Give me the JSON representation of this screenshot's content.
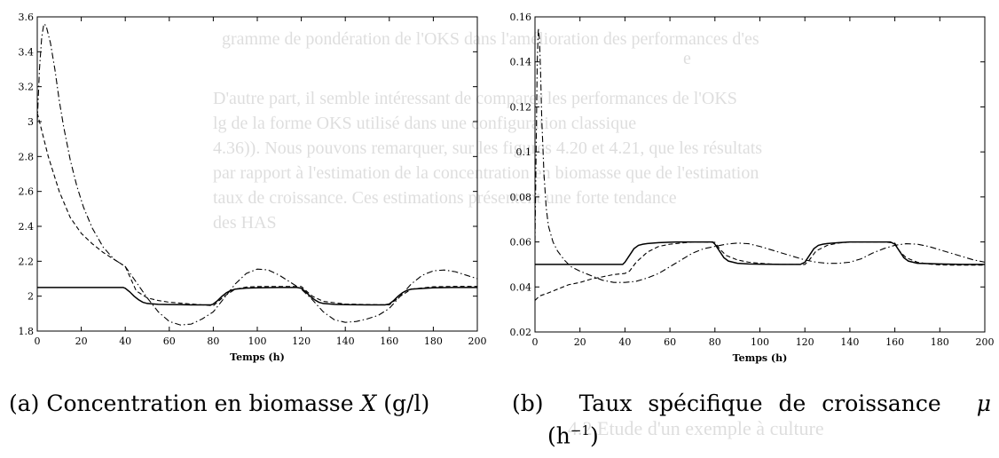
{
  "background": {
    "lines": [
      "gramme de pondération de l'OKS dans l'amélioration des performances d'es",
      "e",
      "D'autre part, il semble intéressant de comparer les performances de l'OKS",
      "lg de la forme OKS utilisé dans une configuration classique",
      "4.36)). Nous pouvons remarquer, sur les figures 4.20 et 4.21, que les résultats",
      "par rapport à l'estimation de la concentration en biomasse que de l'estimation",
      "taux de croissance. Ces estimations présentent une forte tendance",
      "des HAS",
      "4.2 Etude d'un exemple à culture"
    ]
  },
  "chart_data": [
    {
      "type": "line",
      "title": "",
      "xlabel": "Temps (h)",
      "ylabel": "",
      "xlim": [
        0,
        200
      ],
      "ylim": [
        1.8,
        3.6
      ],
      "xticks": [
        0,
        20,
        40,
        60,
        80,
        100,
        120,
        140,
        160,
        180,
        200
      ],
      "yticks": [
        1.8,
        2,
        2.2,
        2.4,
        2.6,
        2.8,
        3,
        3.2,
        3.4,
        3.6
      ],
      "xtick_labels": [
        "0",
        "20",
        "40",
        "60",
        "80",
        "100",
        "120",
        "140",
        "160",
        "180",
        "200"
      ],
      "ytick_labels": [
        "1.8",
        "2",
        "2.2",
        "2.4",
        "2.6",
        "2.8",
        "3",
        "3.2",
        "3.4",
        "3.6"
      ],
      "caption": {
        "label": "(a)",
        "text": "Concentration en biomasse",
        "symbol": "X",
        "unit": "(g/l)"
      },
      "series": [
        {
          "style": "solid",
          "x": [
            0,
            39,
            40,
            42,
            44,
            46,
            48,
            50,
            55,
            60,
            65,
            70,
            75,
            79,
            80,
            82,
            84,
            86,
            88,
            90,
            95,
            100,
            110,
            118,
            120,
            122,
            124,
            126,
            128,
            130,
            135,
            140,
            150,
            158,
            160,
            162,
            164,
            166,
            168,
            170,
            180,
            190,
            200
          ],
          "y": [
            2.05,
            2.05,
            2.045,
            2.025,
            2.0,
            1.98,
            1.965,
            1.958,
            1.953,
            1.952,
            1.951,
            1.95,
            1.95,
            1.95,
            1.955,
            1.975,
            2.0,
            2.02,
            2.033,
            2.04,
            2.046,
            2.048,
            2.05,
            2.05,
            2.045,
            2.025,
            2.0,
            1.98,
            1.965,
            1.958,
            1.953,
            1.951,
            1.95,
            1.95,
            1.955,
            1.975,
            2.0,
            2.02,
            2.033,
            2.04,
            2.048,
            2.05,
            2.05
          ]
        },
        {
          "style": "dashed",
          "x": [
            0,
            2,
            5,
            10,
            15,
            20,
            25,
            30,
            35,
            40,
            45,
            50,
            55,
            60,
            65,
            70,
            75,
            80,
            85,
            90,
            95,
            100,
            110,
            120,
            125,
            130,
            140,
            150,
            160,
            165,
            170,
            180,
            190,
            200
          ],
          "y": [
            3.05,
            2.95,
            2.8,
            2.6,
            2.45,
            2.36,
            2.3,
            2.25,
            2.21,
            2.17,
            2.03,
            1.99,
            1.975,
            1.965,
            1.96,
            1.955,
            1.95,
            1.945,
            2.0,
            2.04,
            2.052,
            2.055,
            2.055,
            2.055,
            2.0,
            1.97,
            1.955,
            1.952,
            1.95,
            2.0,
            2.04,
            2.054,
            2.056,
            2.056
          ]
        },
        {
          "style": "dashdot",
          "x": [
            0,
            1,
            2,
            3,
            4,
            6,
            8,
            10,
            12,
            15,
            18,
            21,
            25,
            30,
            35,
            40,
            45,
            50,
            55,
            60,
            65,
            70,
            75,
            80,
            85,
            90,
            95,
            100,
            105,
            110,
            115,
            120,
            125,
            130,
            135,
            140,
            145,
            150,
            155,
            160,
            165,
            170,
            175,
            180,
            185,
            190,
            195,
            200
          ],
          "y": [
            3.0,
            3.3,
            3.48,
            3.56,
            3.55,
            3.45,
            3.3,
            3.12,
            2.97,
            2.78,
            2.63,
            2.51,
            2.39,
            2.28,
            2.21,
            2.17,
            2.08,
            1.99,
            1.91,
            1.855,
            1.835,
            1.84,
            1.87,
            1.91,
            1.99,
            2.07,
            2.13,
            2.155,
            2.15,
            2.12,
            2.08,
            2.04,
            1.98,
            1.91,
            1.865,
            1.85,
            1.855,
            1.87,
            1.89,
            1.93,
            2.0,
            2.07,
            2.12,
            2.145,
            2.15,
            2.14,
            2.12,
            2.1
          ]
        }
      ]
    },
    {
      "type": "line",
      "title": "",
      "xlabel": "Temps (h)",
      "ylabel": "",
      "xlim": [
        0,
        200
      ],
      "ylim": [
        0.02,
        0.16
      ],
      "xticks": [
        0,
        20,
        40,
        60,
        80,
        100,
        120,
        140,
        160,
        180,
        200
      ],
      "yticks": [
        0.02,
        0.04,
        0.06,
        0.08,
        0.1,
        0.12,
        0.14,
        0.16
      ],
      "xtick_labels": [
        "0",
        "20",
        "40",
        "60",
        "80",
        "100",
        "120",
        "140",
        "160",
        "180",
        "200"
      ],
      "ytick_labels": [
        "0.02",
        "0.04",
        "0.06",
        "0.08",
        "0.1",
        "0.12",
        "0.14",
        "0.16"
      ],
      "caption": {
        "label": "(b)",
        "text": "Taux spécifique de croissance",
        "symbol": "μ",
        "unit_line2": "(h",
        "unit_sup": "−1",
        "unit_close": ")"
      },
      "series": [
        {
          "style": "solid",
          "x": [
            0,
            39,
            40,
            42,
            44,
            46,
            48,
            50,
            55,
            60,
            65,
            70,
            75,
            79,
            80,
            82,
            84,
            86,
            88,
            90,
            95,
            100,
            110,
            118,
            120,
            122,
            124,
            126,
            128,
            130,
            135,
            140,
            150,
            158,
            160,
            162,
            164,
            166,
            168,
            170,
            180,
            190,
            200
          ],
          "y": [
            0.05,
            0.05,
            0.051,
            0.054,
            0.057,
            0.0585,
            0.059,
            0.0593,
            0.0597,
            0.0599,
            0.06,
            0.06,
            0.06,
            0.06,
            0.059,
            0.056,
            0.053,
            0.0515,
            0.051,
            0.0505,
            0.0502,
            0.0501,
            0.05,
            0.05,
            0.051,
            0.054,
            0.057,
            0.0585,
            0.059,
            0.0593,
            0.0597,
            0.06,
            0.06,
            0.06,
            0.059,
            0.056,
            0.053,
            0.0515,
            0.051,
            0.0505,
            0.0502,
            0.05,
            0.05
          ]
        },
        {
          "style": "dashed",
          "x": [
            0,
            2,
            5,
            10,
            15,
            20,
            25,
            30,
            35,
            40,
            42,
            45,
            50,
            55,
            60,
            65,
            70,
            75,
            80,
            82,
            85,
            90,
            95,
            100,
            105,
            110,
            115,
            120,
            122,
            125,
            130,
            135,
            140,
            145,
            150,
            155,
            160,
            162,
            165,
            170,
            175,
            180,
            185,
            190,
            195,
            200
          ],
          "y": [
            0.034,
            0.036,
            0.037,
            0.039,
            0.041,
            0.042,
            0.0435,
            0.0445,
            0.0455,
            0.046,
            0.047,
            0.051,
            0.0555,
            0.058,
            0.059,
            0.0595,
            0.06,
            0.06,
            0.0598,
            0.057,
            0.054,
            0.052,
            0.051,
            0.0505,
            0.0502,
            0.05,
            0.05,
            0.05,
            0.052,
            0.056,
            0.0585,
            0.0595,
            0.06,
            0.06,
            0.06,
            0.06,
            0.0595,
            0.056,
            0.053,
            0.051,
            0.0502,
            0.0498,
            0.0497,
            0.0497,
            0.0497,
            0.0497
          ]
        },
        {
          "style": "dashdot",
          "x": [
            0,
            0.5,
            1,
            1.5,
            2,
            2.5,
            3,
            4,
            5,
            6,
            8,
            10,
            13,
            16,
            20,
            25,
            30,
            35,
            40,
            45,
            50,
            55,
            60,
            65,
            70,
            75,
            80,
            85,
            90,
            95,
            100,
            105,
            110,
            115,
            120,
            125,
            130,
            135,
            140,
            145,
            150,
            155,
            160,
            165,
            170,
            175,
            180,
            185,
            190,
            195,
            200
          ],
          "y": [
            0.06,
            0.1,
            0.14,
            0.155,
            0.15,
            0.135,
            0.115,
            0.09,
            0.075,
            0.067,
            0.06,
            0.056,
            0.052,
            0.049,
            0.047,
            0.045,
            0.043,
            0.042,
            0.042,
            0.0425,
            0.044,
            0.046,
            0.049,
            0.052,
            0.055,
            0.057,
            0.058,
            0.059,
            0.0595,
            0.0592,
            0.058,
            0.0565,
            0.055,
            0.0535,
            0.052,
            0.051,
            0.0505,
            0.0505,
            0.051,
            0.0525,
            0.055,
            0.057,
            0.0585,
            0.0592,
            0.059,
            0.058,
            0.0565,
            0.055,
            0.0535,
            0.052,
            0.051
          ]
        }
      ]
    }
  ]
}
